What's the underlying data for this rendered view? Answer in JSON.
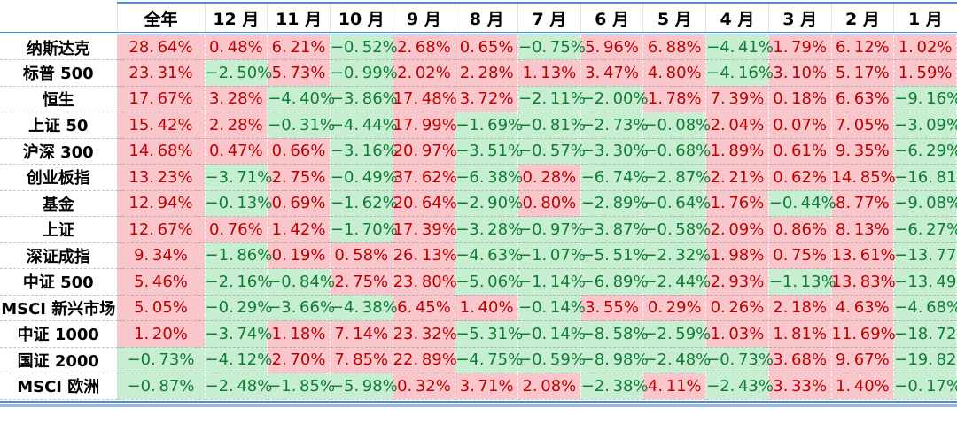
{
  "table_style": {
    "positive_bg": "#f9c7cb",
    "positive_text": "#c00000",
    "negative_bg": "#c8eed2",
    "negative_text": "#0e7d33",
    "accent_line": "#4a8fd3",
    "accent_line_light": "#8fb9e0",
    "color_rule": "positive values: pink background with dark-red text; negative values: light-green background with dark-green text"
  },
  "chart_data": {
    "type": "table",
    "title": "",
    "corner_label": "",
    "value_suffix": "%",
    "columns": [
      "全年",
      "12 月",
      "11 月",
      "10 月",
      "9 月",
      "8 月",
      "7 月",
      "6 月",
      "5 月",
      "4 月",
      "3 月",
      "2 月",
      "1 月"
    ],
    "rows": [
      {
        "label": "纳斯达克",
        "values": [
          28.64,
          0.48,
          6.21,
          -0.52,
          2.68,
          0.65,
          -0.75,
          5.96,
          6.88,
          -4.41,
          1.79,
          6.12,
          1.02
        ]
      },
      {
        "label": "标普 500",
        "values": [
          23.31,
          -2.5,
          5.73,
          -0.99,
          2.02,
          2.28,
          1.13,
          3.47,
          4.8,
          -4.16,
          3.1,
          5.17,
          1.59
        ]
      },
      {
        "label": "恒生",
        "values": [
          17.67,
          3.28,
          -4.4,
          -3.86,
          17.48,
          3.72,
          -2.11,
          -2.0,
          1.78,
          7.39,
          0.18,
          6.63,
          -9.16
        ]
      },
      {
        "label": "上证 50",
        "values": [
          15.42,
          2.28,
          -0.31,
          -4.44,
          17.99,
          -1.69,
          -0.81,
          -2.73,
          -0.08,
          2.04,
          0.07,
          7.05,
          -3.09
        ]
      },
      {
        "label": "沪深 300",
        "values": [
          14.68,
          0.47,
          0.66,
          -3.16,
          20.97,
          -3.51,
          -0.57,
          -3.3,
          -0.68,
          1.89,
          0.61,
          9.35,
          -6.29
        ]
      },
      {
        "label": "创业板指",
        "values": [
          13.23,
          -3.71,
          2.75,
          -0.49,
          37.62,
          -6.38,
          0.28,
          -6.74,
          -2.87,
          2.21,
          0.62,
          14.85,
          -16.81
        ]
      },
      {
        "label": "基金",
        "values": [
          12.94,
          -0.13,
          0.69,
          -1.62,
          20.64,
          -2.9,
          0.8,
          -2.89,
          -0.64,
          1.76,
          -0.44,
          8.77,
          -9.08
        ]
      },
      {
        "label": "上证",
        "values": [
          12.67,
          0.76,
          1.42,
          -1.7,
          17.39,
          -3.28,
          -0.97,
          -3.87,
          -0.58,
          2.09,
          0.86,
          8.13,
          -6.27
        ]
      },
      {
        "label": "深证成指",
        "values": [
          9.34,
          -1.86,
          0.19,
          0.58,
          26.13,
          -4.63,
          -1.07,
          -5.51,
          -2.32,
          1.98,
          0.75,
          13.61,
          -13.77
        ]
      },
      {
        "label": "中证 500",
        "values": [
          5.46,
          -2.16,
          -0.84,
          2.75,
          23.8,
          -5.06,
          -1.14,
          -6.89,
          -2.44,
          2.93,
          -1.13,
          13.83,
          -13.49
        ]
      },
      {
        "label": "MSCI 新兴市场",
        "values": [
          5.05,
          -0.29,
          -3.66,
          -4.38,
          6.45,
          1.4,
          -0.14,
          3.55,
          0.29,
          0.26,
          2.18,
          4.63,
          -4.68
        ]
      },
      {
        "label": "中证 1000",
        "values": [
          1.2,
          -3.74,
          1.18,
          7.14,
          23.32,
          -5.31,
          -0.14,
          -8.58,
          -2.59,
          1.03,
          1.81,
          11.69,
          -18.72
        ]
      },
      {
        "label": "国证 2000",
        "values": [
          -0.73,
          -4.12,
          2.7,
          7.85,
          22.89,
          -4.75,
          -0.59,
          -8.98,
          -2.48,
          -0.73,
          3.68,
          9.67,
          -19.82
        ]
      },
      {
        "label": "MSCI 欧洲",
        "values": [
          -0.87,
          -2.48,
          -1.85,
          -5.98,
          0.32,
          3.71,
          2.08,
          -2.38,
          4.11,
          -2.43,
          3.33,
          1.4,
          -0.17
        ]
      }
    ]
  }
}
